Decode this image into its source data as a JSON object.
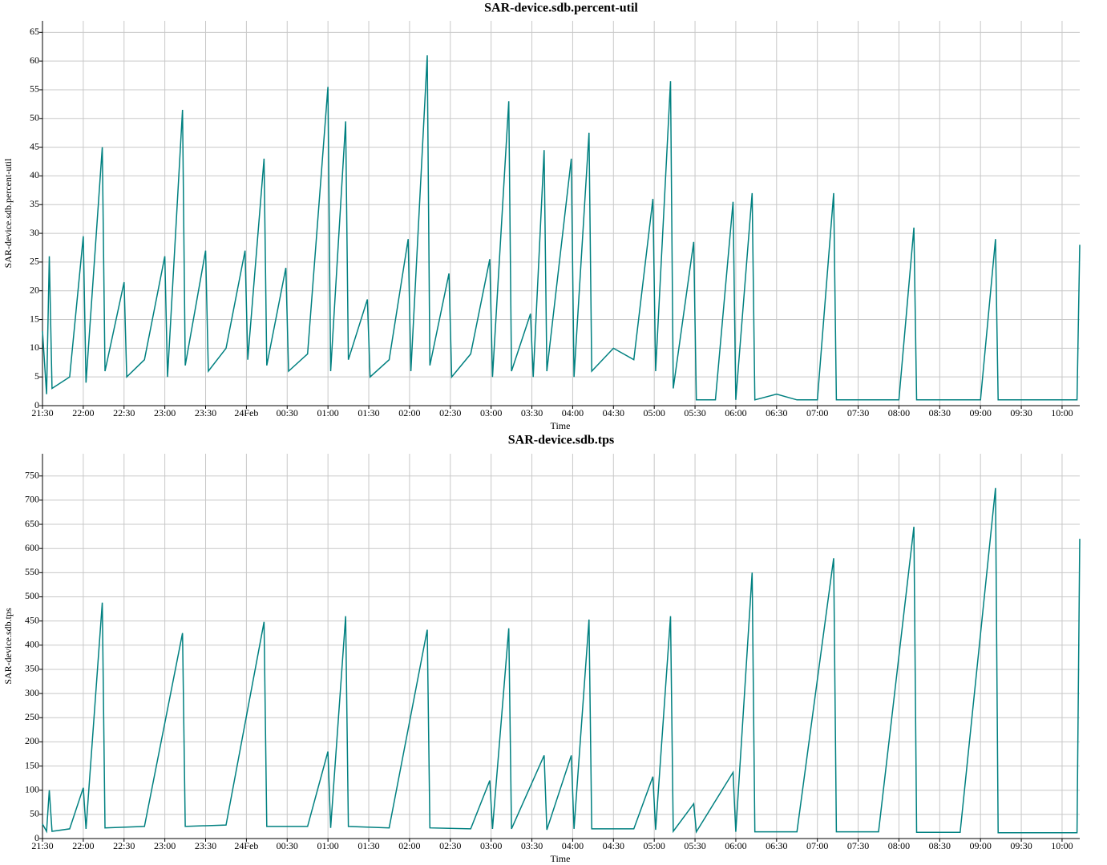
{
  "chart_data": [
    {
      "type": "line",
      "title": "SAR-device.sdb.percent-util",
      "x_label": "Time",
      "y_label": "SAR-device.sdb.percent-util",
      "grid": true,
      "xlim": [
        "21:30",
        "10:13"
      ],
      "xticks": [
        "21:30",
        "22:00",
        "22:30",
        "23:00",
        "23:30",
        {
          "value": "00:00",
          "label": "24Feb"
        },
        "00:30",
        "01:00",
        "01:30",
        "02:00",
        "02:30",
        "03:00",
        "03:30",
        "04:00",
        "04:30",
        "05:00",
        "05:30",
        "06:00",
        "06:30",
        "07:00",
        "07:30",
        "08:00",
        "08:30",
        "09:00",
        "09:30",
        "10:00"
      ],
      "ylim": [
        0,
        67
      ],
      "yticks": [
        0,
        5,
        10,
        15,
        20,
        25,
        30,
        35,
        40,
        45,
        50,
        55,
        60,
        65
      ],
      "x": [
        "21:30",
        "21:33",
        "21:35",
        "21:37",
        "21:50",
        "22:00",
        "22:02",
        "22:14",
        "22:16",
        "22:30",
        "22:32",
        "22:45",
        "23:00",
        "23:02",
        "23:13",
        "23:15",
        "23:30",
        "23:32",
        "23:45",
        "23:59",
        "00:01",
        "00:13",
        "00:15",
        "00:29",
        "00:31",
        "00:45",
        "01:00",
        "01:02",
        "01:13",
        "01:15",
        "01:29",
        "01:31",
        "01:45",
        "01:59",
        "02:01",
        "02:13",
        "02:15",
        "02:29",
        "02:31",
        "02:45",
        "02:59",
        "03:01",
        "03:13",
        "03:15",
        "03:29",
        "03:31",
        "03:39",
        "03:41",
        "03:59",
        "04:01",
        "04:12",
        "04:14",
        "04:30",
        "04:45",
        "04:59",
        "05:01",
        "05:12",
        "05:14",
        "05:29",
        "05:31",
        "05:45",
        "05:58",
        "06:00",
        "06:12",
        "06:14",
        "06:30",
        "06:45",
        "07:00",
        "07:12",
        "07:14",
        "07:30",
        "07:45",
        "08:00",
        "08:11",
        "08:13",
        "08:30",
        "08:45",
        "09:00",
        "09:11",
        "09:13",
        "09:30",
        "09:45",
        "10:00",
        "10:11",
        "10:13"
      ],
      "series": [
        {
          "name": "SAR-device.sdb.percent-util",
          "color": "#008080",
          "values": [
            13,
            2,
            26,
            3,
            5,
            29.5,
            4,
            45,
            6,
            21.5,
            5,
            8,
            26,
            5,
            51.5,
            7,
            27,
            6,
            10,
            27,
            8,
            43,
            7,
            24,
            6,
            9,
            55.5,
            6,
            49.5,
            8,
            18.5,
            5,
            8,
            29,
            6,
            61,
            7,
            23,
            5,
            9,
            25.5,
            5,
            53,
            6,
            16,
            5,
            44.5,
            6,
            43,
            5,
            47.5,
            6,
            10,
            8,
            36,
            6,
            56.5,
            3,
            28.5,
            1,
            1,
            35.5,
            1,
            37,
            1,
            2,
            1,
            1,
            37,
            1,
            1,
            1,
            1,
            31,
            1,
            1,
            1,
            1,
            29,
            1,
            1,
            1,
            1,
            1,
            28
          ]
        }
      ]
    },
    {
      "type": "line",
      "title": "SAR-device.sdb.tps",
      "x_label": "Time",
      "y_label": "SAR-device.sdb.tps",
      "grid": true,
      "xlim": [
        "21:30",
        "10:13"
      ],
      "xticks": [
        "21:30",
        "22:00",
        "22:30",
        "23:00",
        "23:30",
        {
          "value": "00:00",
          "label": "24Feb"
        },
        "00:30",
        "01:00",
        "01:30",
        "02:00",
        "02:30",
        "03:00",
        "03:30",
        "04:00",
        "04:30",
        "05:00",
        "05:30",
        "06:00",
        "06:30",
        "07:00",
        "07:30",
        "08:00",
        "08:30",
        "09:00",
        "09:30",
        "10:00"
      ],
      "ylim": [
        0,
        796
      ],
      "yticks": [
        0,
        50,
        100,
        150,
        200,
        250,
        300,
        350,
        400,
        450,
        500,
        550,
        600,
        650,
        700,
        750
      ],
      "x": [
        "21:30",
        "21:33",
        "21:35",
        "21:37",
        "21:50",
        "22:00",
        "22:02",
        "22:14",
        "22:16",
        "22:45",
        "23:13",
        "23:15",
        "23:45",
        "00:13",
        "00:15",
        "00:45",
        "01:00",
        "01:02",
        "01:13",
        "01:15",
        "01:45",
        "02:13",
        "02:15",
        "02:45",
        "02:59",
        "03:01",
        "03:13",
        "03:15",
        "03:39",
        "03:41",
        "03:59",
        "04:01",
        "04:12",
        "04:14",
        "04:45",
        "04:59",
        "05:01",
        "05:12",
        "05:14",
        "05:29",
        "05:31",
        "05:58",
        "06:00",
        "06:12",
        "06:14",
        "06:45",
        "07:12",
        "07:14",
        "07:45",
        "08:11",
        "08:13",
        "08:45",
        "09:11",
        "09:13",
        "09:45",
        "10:11",
        "10:13"
      ],
      "series": [
        {
          "name": "SAR-device.sdb.tps",
          "color": "#008080",
          "values": [
            30,
            15,
            100,
            15,
            20,
            105,
            20,
            488,
            22,
            25,
            425,
            25,
            28,
            448,
            25,
            25,
            180,
            22,
            460,
            25,
            22,
            432,
            22,
            20,
            120,
            20,
            435,
            20,
            172,
            18,
            172,
            20,
            453,
            20,
            20,
            128,
            18,
            460,
            15,
            72,
            14,
            137,
            14,
            550,
            14,
            14,
            580,
            14,
            14,
            645,
            13,
            13,
            725,
            12,
            12,
            12,
            620
          ]
        }
      ]
    }
  ]
}
